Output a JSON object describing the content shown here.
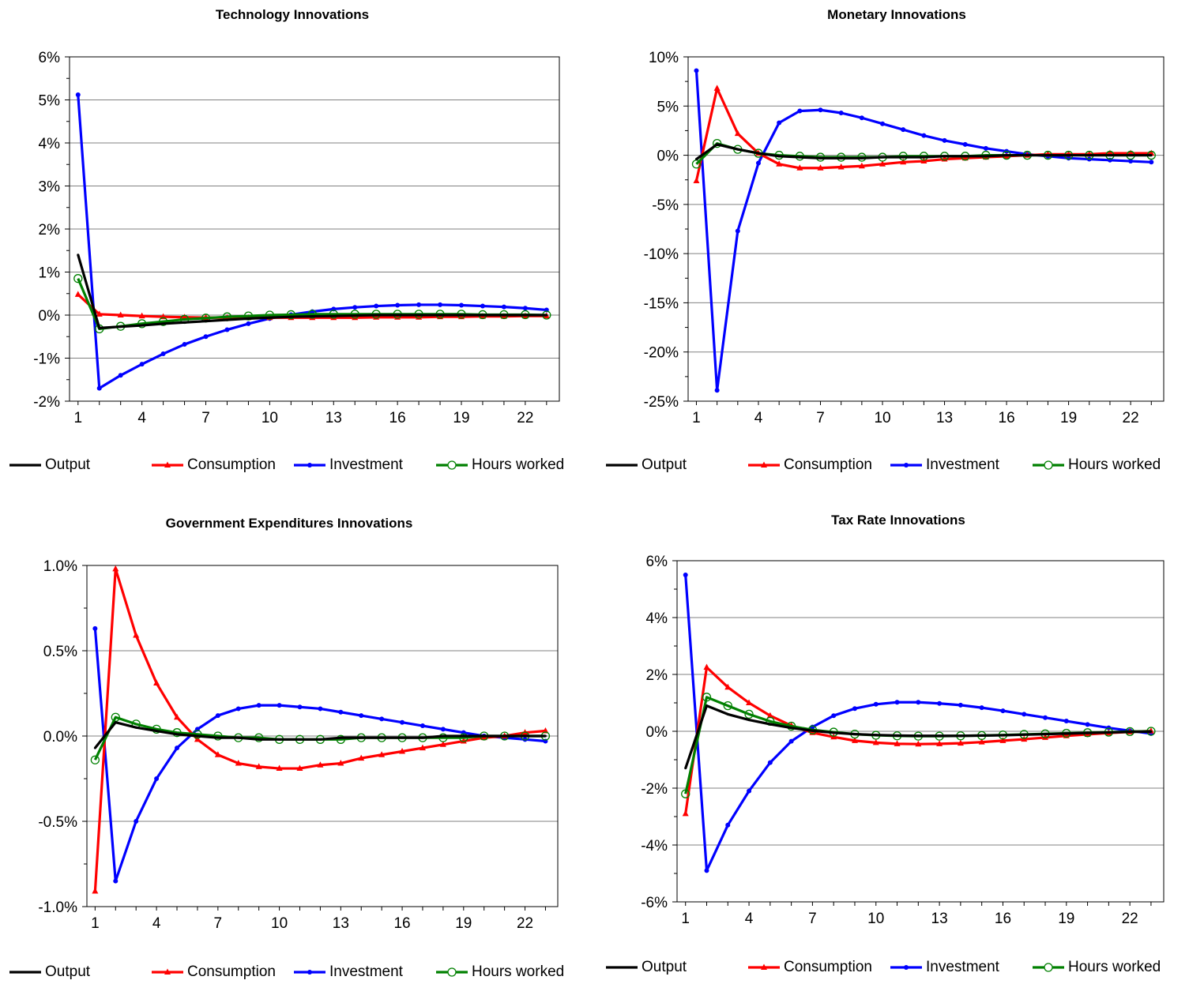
{
  "series_styles": [
    {
      "name": "Output",
      "color": "#000000",
      "marker": "none"
    },
    {
      "name": "Consumption",
      "color": "#ff0000",
      "marker": "triangle"
    },
    {
      "name": "Investment",
      "color": "#0000ff",
      "marker": "dot"
    },
    {
      "name": "Hours worked",
      "color": "#008000",
      "marker": "open-circle"
    }
  ],
  "chart_data": [
    {
      "type": "line",
      "title": "Technology Innovations",
      "x": [
        1,
        2,
        3,
        4,
        5,
        6,
        7,
        8,
        9,
        10,
        11,
        12,
        13,
        14,
        15,
        16,
        17,
        18,
        19,
        20,
        21,
        22,
        23
      ],
      "x_ticks": [
        1,
        4,
        7,
        10,
        13,
        16,
        19,
        22
      ],
      "ylim": [
        -2,
        6
      ],
      "y_ticks": [
        -2,
        -1,
        0,
        1,
        2,
        3,
        4,
        5,
        6
      ],
      "y_tick_labels": [
        "-2%",
        "-1%",
        "0%",
        "1%",
        "2%",
        "3%",
        "4%",
        "5%",
        "6%"
      ],
      "grid": "horizontal",
      "legend_position": "bottom",
      "series": [
        {
          "name": "Output",
          "values": [
            1.4,
            -0.3,
            -0.27,
            -0.24,
            -0.2,
            -0.17,
            -0.14,
            -0.11,
            -0.08,
            -0.06,
            -0.04,
            -0.03,
            -0.02,
            -0.01,
            0,
            0,
            0,
            0,
            0,
            0,
            0,
            0,
            0
          ]
        },
        {
          "name": "Consumption",
          "values": [
            0.48,
            0.02,
            0,
            -0.02,
            -0.04,
            -0.05,
            -0.06,
            -0.06,
            -0.06,
            -0.06,
            -0.06,
            -0.06,
            -0.06,
            -0.06,
            -0.05,
            -0.05,
            -0.05,
            -0.04,
            -0.04,
            -0.03,
            -0.03,
            -0.02,
            -0.02
          ]
        },
        {
          "name": "Investment",
          "values": [
            5.12,
            -1.7,
            -1.4,
            -1.14,
            -0.9,
            -0.68,
            -0.5,
            -0.34,
            -0.2,
            -0.08,
            0.01,
            0.08,
            0.14,
            0.18,
            0.21,
            0.23,
            0.24,
            0.24,
            0.23,
            0.21,
            0.19,
            0.16,
            0.12
          ]
        },
        {
          "name": "Hours worked",
          "values": [
            0.85,
            -0.32,
            -0.26,
            -0.2,
            -0.15,
            -0.1,
            -0.07,
            -0.04,
            -0.02,
            0,
            0.01,
            0.02,
            0.02,
            0.02,
            0.02,
            0.02,
            0.02,
            0.02,
            0.02,
            0.01,
            0.01,
            0.01,
            0
          ]
        }
      ]
    },
    {
      "type": "line",
      "title": "Monetary Innovations",
      "x": [
        1,
        2,
        3,
        4,
        5,
        6,
        7,
        8,
        9,
        10,
        11,
        12,
        13,
        14,
        15,
        16,
        17,
        18,
        19,
        20,
        21,
        22,
        23
      ],
      "x_ticks": [
        1,
        4,
        7,
        10,
        13,
        16,
        19,
        22
      ],
      "ylim": [
        -25,
        10
      ],
      "y_ticks": [
        -25,
        -20,
        -15,
        -10,
        -5,
        0,
        5,
        10
      ],
      "y_tick_labels": [
        "-25%",
        "-20%",
        "-15%",
        "-10%",
        "-5%",
        "0%",
        "5%",
        "10%"
      ],
      "grid": "horizontal",
      "legend_position": "bottom",
      "series": [
        {
          "name": "Output",
          "values": [
            -0.4,
            1.1,
            0.6,
            0.2,
            -0.1,
            -0.2,
            -0.3,
            -0.3,
            -0.3,
            -0.2,
            -0.2,
            -0.2,
            -0.1,
            -0.1,
            -0.1,
            0,
            0,
            0,
            0,
            0,
            0,
            0,
            0
          ]
        },
        {
          "name": "Consumption",
          "values": [
            -2.6,
            6.8,
            2.2,
            0.2,
            -0.9,
            -1.3,
            -1.3,
            -1.2,
            -1.1,
            -0.9,
            -0.7,
            -0.6,
            -0.4,
            -0.3,
            -0.2,
            -0.1,
            0,
            0.1,
            0.1,
            0.1,
            0.2,
            0.2,
            0.2
          ]
        },
        {
          "name": "Investment",
          "values": [
            8.6,
            -23.9,
            -7.7,
            -0.8,
            3.3,
            4.5,
            4.6,
            4.3,
            3.8,
            3.2,
            2.6,
            2,
            1.5,
            1.1,
            0.7,
            0.4,
            0.1,
            -0.1,
            -0.3,
            -0.4,
            -0.5,
            -0.6,
            -0.7
          ]
        },
        {
          "name": "Hours worked",
          "values": [
            -0.9,
            1.2,
            0.6,
            0.2,
            0,
            -0.1,
            -0.2,
            -0.2,
            -0.2,
            -0.2,
            -0.1,
            -0.1,
            -0.1,
            -0.1,
            0,
            0,
            0,
            0,
            0,
            0,
            0,
            0,
            0
          ]
        }
      ]
    },
    {
      "type": "line",
      "title": "Government Expenditures Innovations",
      "x": [
        1,
        2,
        3,
        4,
        5,
        6,
        7,
        8,
        9,
        10,
        11,
        12,
        13,
        14,
        15,
        16,
        17,
        18,
        19,
        20,
        21,
        22,
        23
      ],
      "x_ticks": [
        1,
        4,
        7,
        10,
        13,
        16,
        19,
        22
      ],
      "ylim": [
        -1.0,
        1.0
      ],
      "y_ticks": [
        -1.0,
        -0.5,
        0,
        0.5,
        1.0
      ],
      "y_tick_labels": [
        "-1.0%",
        "-0.5%",
        "0.0%",
        "0.5%",
        "1.0%"
      ],
      "grid": "horizontal",
      "legend_position": "bottom",
      "series": [
        {
          "name": "Output",
          "values": [
            -0.07,
            0.08,
            0.05,
            0.03,
            0.01,
            0,
            -0.01,
            -0.01,
            -0.02,
            -0.02,
            -0.02,
            -0.02,
            -0.01,
            -0.01,
            -0.01,
            -0.01,
            -0.01,
            0,
            0,
            0,
            0,
            0,
            0
          ]
        },
        {
          "name": "Consumption",
          "values": [
            -0.91,
            0.98,
            0.59,
            0.31,
            0.11,
            -0.02,
            -0.11,
            -0.16,
            -0.18,
            -0.19,
            -0.19,
            -0.17,
            -0.16,
            -0.13,
            -0.11,
            -0.09,
            -0.07,
            -0.05,
            -0.03,
            -0.01,
            0,
            0.02,
            0.03
          ]
        },
        {
          "name": "Investment",
          "values": [
            0.63,
            -0.85,
            -0.5,
            -0.25,
            -0.07,
            0.04,
            0.12,
            0.16,
            0.18,
            0.18,
            0.17,
            0.16,
            0.14,
            0.12,
            0.1,
            0.08,
            0.06,
            0.04,
            0.02,
            0,
            -0.01,
            -0.02,
            -0.03
          ]
        },
        {
          "name": "Hours worked",
          "values": [
            -0.14,
            0.11,
            0.07,
            0.04,
            0.02,
            0.01,
            0,
            -0.01,
            -0.01,
            -0.02,
            -0.02,
            -0.02,
            -0.02,
            -0.01,
            -0.01,
            -0.01,
            -0.01,
            -0.01,
            -0.01,
            0,
            0,
            0,
            0
          ]
        }
      ]
    },
    {
      "type": "line",
      "title": "Tax Rate Innovations",
      "x": [
        1,
        2,
        3,
        4,
        5,
        6,
        7,
        8,
        9,
        10,
        11,
        12,
        13,
        14,
        15,
        16,
        17,
        18,
        19,
        20,
        21,
        22,
        23
      ],
      "x_ticks": [
        1,
        4,
        7,
        10,
        13,
        16,
        19,
        22
      ],
      "ylim": [
        -6,
        6
      ],
      "y_ticks": [
        -6,
        -4,
        -2,
        0,
        2,
        4,
        6
      ],
      "y_tick_labels": [
        "-6%",
        "-4%",
        "-2%",
        "0%",
        "2%",
        "4%",
        "6%"
      ],
      "grid": "horizontal",
      "legend_position": "bottom",
      "series": [
        {
          "name": "Output",
          "values": [
            -1.3,
            0.9,
            0.6,
            0.4,
            0.25,
            0.12,
            0.02,
            -0.05,
            -0.1,
            -0.13,
            -0.15,
            -0.16,
            -0.16,
            -0.16,
            -0.15,
            -0.14,
            -0.12,
            -0.1,
            -0.08,
            -0.06,
            -0.04,
            -0.02,
            -0.01
          ]
        },
        {
          "name": "Consumption",
          "values": [
            -2.9,
            2.25,
            1.55,
            1,
            0.55,
            0.2,
            -0.05,
            -0.2,
            -0.33,
            -0.4,
            -0.44,
            -0.45,
            -0.44,
            -0.42,
            -0.38,
            -0.33,
            -0.28,
            -0.22,
            -0.16,
            -0.11,
            -0.06,
            -0.02,
            0.01
          ]
        },
        {
          "name": "Investment",
          "values": [
            5.5,
            -4.9,
            -3.3,
            -2.1,
            -1.1,
            -0.35,
            0.15,
            0.55,
            0.8,
            0.95,
            1.02,
            1.02,
            0.98,
            0.92,
            0.83,
            0.72,
            0.6,
            0.48,
            0.36,
            0.24,
            0.12,
            0.02,
            -0.08
          ]
        },
        {
          "name": "Hours worked",
          "values": [
            -2.2,
            1.2,
            0.9,
            0.6,
            0.35,
            0.18,
            0.05,
            -0.03,
            -0.1,
            -0.14,
            -0.16,
            -0.17,
            -0.17,
            -0.16,
            -0.15,
            -0.13,
            -0.11,
            -0.09,
            -0.07,
            -0.05,
            -0.03,
            -0.01,
            0
          ]
        }
      ]
    }
  ]
}
